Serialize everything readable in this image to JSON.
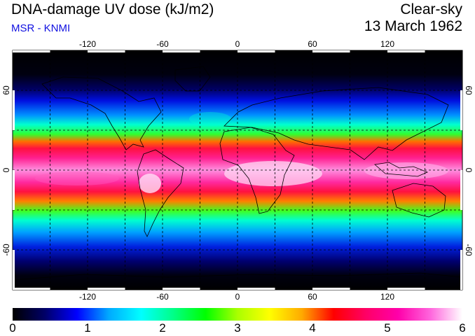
{
  "header": {
    "title": "DNA-damage UV dose (kJ/m2)",
    "subtitle": "MSR - KNMI",
    "condition": "Clear-sky",
    "date": "13 March 1962"
  },
  "map": {
    "lon_ticks": [
      "-120",
      "-60",
      "0",
      "60",
      "120"
    ],
    "lat_ticks": [
      "60",
      "0",
      "-60"
    ],
    "lat_ticks_right": [
      "60",
      "0",
      "-60"
    ],
    "lon_range": [
      -180,
      180
    ],
    "lat_range": [
      -90,
      90
    ]
  },
  "colorbar": {
    "labels": [
      "0",
      "1",
      "2",
      "3",
      "4",
      "5",
      "6"
    ],
    "colors": [
      "#000000",
      "#000066",
      "#0000ff",
      "#00aaff",
      "#00ffff",
      "#00ff88",
      "#00ff00",
      "#aaff00",
      "#ffff00",
      "#ffaa00",
      "#ff0000",
      "#ff0066",
      "#ff00aa",
      "#ff66dd",
      "#ffffff"
    ]
  }
}
